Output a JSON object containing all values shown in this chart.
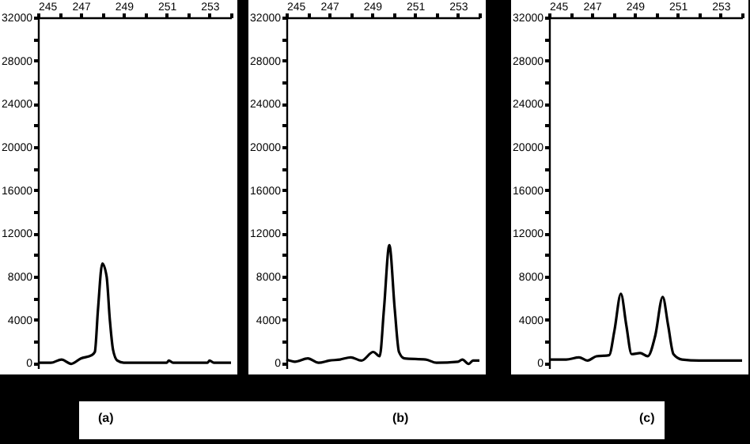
{
  "chart_data": [
    {
      "type": "line",
      "annotations": [
        "(a)"
      ],
      "xlim": [
        245,
        254
      ],
      "ylim": [
        -500,
        32000
      ],
      "xticks": [
        245,
        {
          "value": 246,
          "label": null
        },
        247,
        {
          "value": 248,
          "label": null
        },
        249,
        {
          "value": 250,
          "label": null
        },
        251,
        {
          "value": 252,
          "label": null
        },
        253,
        {
          "value": 254,
          "label": null
        }
      ],
      "yticks": [
        0,
        {
          "value": 2000,
          "label": null
        },
        4000,
        {
          "value": 6000,
          "label": null
        },
        8000,
        {
          "value": 10000,
          "label": null
        },
        12000,
        {
          "value": 14000,
          "label": null
        },
        16000,
        {
          "value": 18000,
          "label": null
        },
        20000,
        {
          "value": 22000,
          "label": null
        },
        24000,
        {
          "value": 26000,
          "label": null
        },
        28000,
        {
          "value": 30000,
          "label": null
        },
        32000
      ],
      "x": [
        245,
        245.6,
        246.1,
        246.55,
        247,
        247.5,
        247.65,
        247.8,
        248,
        248.2,
        248.35,
        248.5,
        248.7,
        249,
        251,
        251.1,
        251.3,
        252.9,
        253,
        253.2,
        254
      ],
      "series": [
        {
          "color": "#000000",
          "values": [
            0,
            0,
            300,
            -100,
            400,
            700,
            1000,
            5000,
            9200,
            8000,
            4000,
            1200,
            200,
            0,
            0,
            200,
            0,
            0,
            200,
            0,
            0
          ]
        }
      ]
    },
    {
      "type": "line",
      "annotations": [
        "(b)"
      ],
      "xlim": [
        245,
        254
      ],
      "ylim": [
        -500,
        32000
      ],
      "xticks": [
        245,
        {
          "value": 246,
          "label": null
        },
        247,
        {
          "value": 248,
          "label": null
        },
        249,
        {
          "value": 250,
          "label": null
        },
        251,
        {
          "value": 252,
          "label": null
        },
        253,
        {
          "value": 254,
          "label": null
        }
      ],
      "yticks": [
        0,
        {
          "value": 2000,
          "label": null
        },
        4000,
        {
          "value": 6000,
          "label": null
        },
        8000,
        {
          "value": 10000,
          "label": null
        },
        12000,
        {
          "value": 14000,
          "label": null
        },
        16000,
        {
          "value": 18000,
          "label": null
        },
        20000,
        {
          "value": 22000,
          "label": null
        },
        24000,
        {
          "value": 26000,
          "label": null
        },
        28000,
        {
          "value": 30000,
          "label": null
        },
        32000
      ],
      "x": [
        245,
        245.4,
        246,
        246.5,
        247,
        247.5,
        248,
        248.5,
        249.05,
        249.35,
        249.55,
        249.8,
        250.05,
        250.25,
        250.5,
        251.5,
        252,
        253,
        253.2,
        253.5,
        253.7,
        254
      ],
      "series": [
        {
          "color": "#000000",
          "values": [
            300,
            100,
            400,
            0,
            200,
            300,
            500,
            200,
            1000,
            600,
            5000,
            10900,
            5000,
            1000,
            400,
            300,
            0,
            100,
            300,
            -100,
            200,
            200
          ]
        }
      ]
    },
    {
      "type": "line",
      "annotations": [
        "(c)"
      ],
      "xlim": [
        245,
        254
      ],
      "ylim": [
        -500,
        32000
      ],
      "xticks": [
        245,
        {
          "value": 246,
          "label": null
        },
        247,
        {
          "value": 248,
          "label": null
        },
        249,
        {
          "value": 250,
          "label": null
        },
        251,
        {
          "value": 252,
          "label": null
        },
        253,
        {
          "value": 254,
          "label": null
        }
      ],
      "yticks": [
        0,
        {
          "value": 2000,
          "label": null
        },
        4000,
        {
          "value": 6000,
          "label": null
        },
        8000,
        {
          "value": 10000,
          "label": null
        },
        12000,
        {
          "value": 14000,
          "label": null
        },
        16000,
        {
          "value": 18000,
          "label": null
        },
        20000,
        {
          "value": 22000,
          "label": null
        },
        24000,
        {
          "value": 26000,
          "label": null
        },
        28000,
        {
          "value": 30000,
          "label": null
        },
        32000
      ],
      "x": [
        245,
        245.8,
        246.4,
        246.8,
        247.2,
        247.8,
        248.05,
        248.35,
        248.6,
        248.85,
        249.25,
        249.6,
        249.95,
        250.3,
        250.55,
        250.8,
        251.2,
        252,
        254
      ],
      "series": [
        {
          "color": "#000000",
          "values": [
            300,
            300,
            500,
            200,
            600,
            700,
            3000,
            6400,
            3500,
            800,
            900,
            600,
            2500,
            6100,
            3500,
            800,
            300,
            200,
            200
          ]
        }
      ]
    }
  ]
}
